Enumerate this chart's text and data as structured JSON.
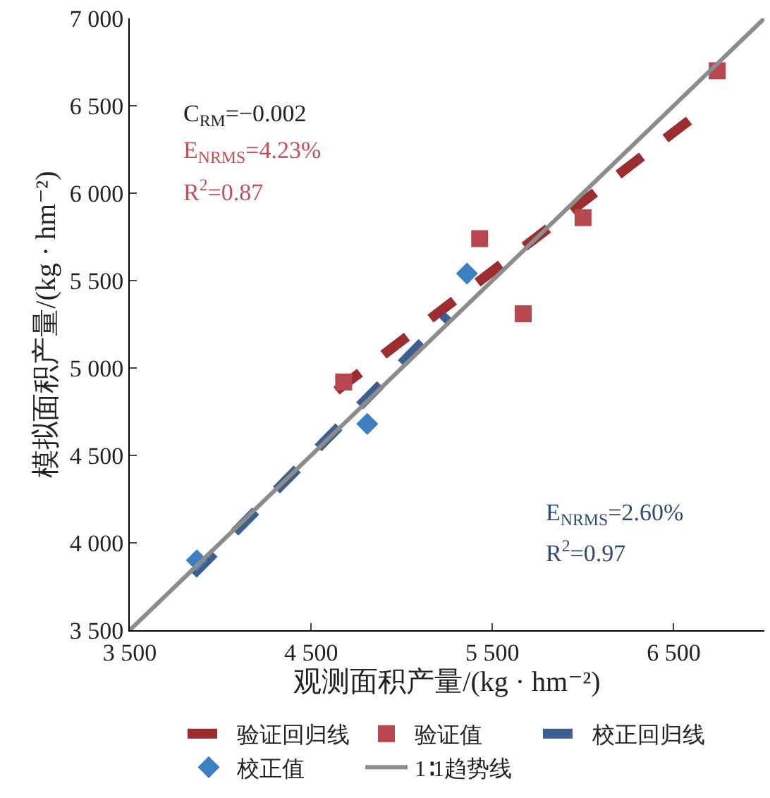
{
  "chart_data": {
    "type": "scatter",
    "xlabel": "观测面积产量/(kg · hm⁻²)",
    "ylabel": "模拟面积产量/(kg · hm⁻²)",
    "series": [
      {
        "name": "验证回归线",
        "type": "line",
        "color": "#9b2d30",
        "line_style": "dashed",
        "marker": "none",
        "x": [
          4640,
          6590
        ],
        "values": [
          4870,
          6420
        ]
      },
      {
        "name": "验证值",
        "color": "#b8464f",
        "marker": "square",
        "x": [
          4680,
          5430,
          5670,
          6000,
          6740
        ],
        "values": [
          4920,
          5740,
          5310,
          5860,
          6700
        ]
      },
      {
        "name": "校正回归线",
        "type": "line",
        "color": "#3c5f8f",
        "line_style": "dashed",
        "marker": "none",
        "x": [
          3850,
          5260
        ],
        "values": [
          3820,
          5300
        ]
      },
      {
        "name": "校正值",
        "color": "#3d7fc1",
        "marker": "diamond",
        "x": [
          3870,
          4810,
          5360
        ],
        "values": [
          3900,
          4680,
          5540
        ]
      },
      {
        "name": "1∶1趋势线",
        "type": "line",
        "color": "#8c8c8c",
        "line_style": "solid",
        "marker": "none",
        "x": [
          3500,
          7000
        ],
        "values": [
          3500,
          7000
        ]
      }
    ],
    "xlim": [
      3500,
      7000
    ],
    "xticks": [
      {
        "value": 3500,
        "label": "3 500"
      },
      {
        "value": 4500,
        "label": "4 500"
      },
      {
        "value": 5500,
        "label": "5 500"
      },
      {
        "value": 6500,
        "label": "6 500"
      }
    ],
    "ylim": [
      3500,
      7000
    ],
    "yticks": [
      {
        "value": 3500,
        "label": "3 500"
      },
      {
        "value": 4000,
        "label": "4 000"
      },
      {
        "value": 4500,
        "label": "4 500"
      },
      {
        "value": 5000,
        "label": "5 000"
      },
      {
        "value": 5500,
        "label": "5 500"
      },
      {
        "value": 6000,
        "label": "6 000"
      },
      {
        "value": 6500,
        "label": "6 500"
      },
      {
        "value": 7000,
        "label": "7 000"
      }
    ],
    "annotations": [
      "C$_{RM}$=−0.002",
      "E$_{NRMS}$=4.23%",
      "R$^{2}$=0.87",
      "E$_{NRMS}$=2.60%",
      "R$^{2}$=0.97"
    ],
    "legend": "bottom"
  }
}
